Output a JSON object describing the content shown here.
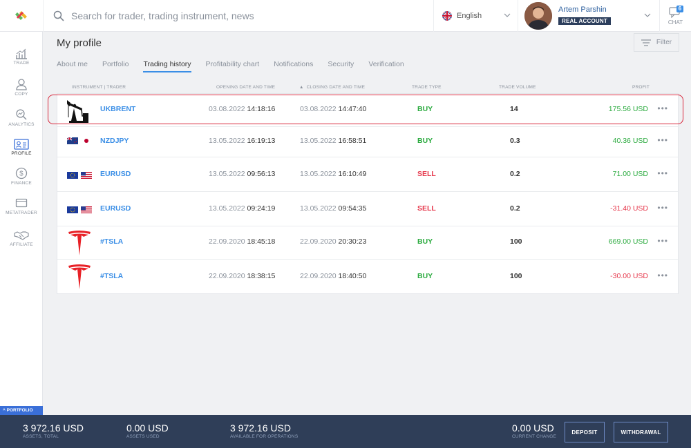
{
  "topbar": {
    "search_placeholder": "Search for trader, trading instrument, news",
    "language": "English",
    "account_name": "Artem Parshin",
    "account_type": "REAL ACCOUNT",
    "chat_label": "CHAT",
    "chat_count": "6"
  },
  "sidebar": {
    "items": [
      {
        "label": "TRADE",
        "icon": "chart-icon"
      },
      {
        "label": "COPY",
        "icon": "copy-icon"
      },
      {
        "label": "ANALYTICS",
        "icon": "analytics-icon"
      },
      {
        "label": "PROFILE",
        "icon": "profile-icon"
      },
      {
        "label": "FINANCE",
        "icon": "dollar-icon"
      },
      {
        "label": "METATRADER",
        "icon": "monitor-icon"
      },
      {
        "label": "AFFILIATE",
        "icon": "handshake-icon"
      }
    ],
    "portfolio_tab": "PORTFOLIO"
  },
  "main": {
    "title": "My profile",
    "filter_label": "Filter",
    "tabs": [
      {
        "label": "About me"
      },
      {
        "label": "Portfolio"
      },
      {
        "label": "Trading history"
      },
      {
        "label": "Profitability chart"
      },
      {
        "label": "Notifications"
      },
      {
        "label": "Security"
      },
      {
        "label": "Verification"
      }
    ],
    "active_tab": "Trading history",
    "columns": {
      "instrument": "INSTRUMENT | TRADER",
      "opening": "OPENING DATE AND TIME",
      "closing": "CLOSING DATE AND TIME",
      "type": "TRADE TYPE",
      "volume": "TRADE VOLUME",
      "profit": "PROFIT",
      "sort_indicator": "▲"
    },
    "rows": [
      {
        "symbol": "UKBRENT",
        "icon": "oil-pump-icon",
        "open_date": "03.08.2022",
        "open_time": "14:18:16",
        "close_date": "03.08.2022",
        "close_time": "14:47:40",
        "type": "BUY",
        "volume": "14",
        "profit": "175.56 USD"
      },
      {
        "symbol": "NZDJPY",
        "icon": "nz-jp-flags-icon",
        "open_date": "13.05.2022",
        "open_time": "16:19:13",
        "close_date": "13.05.2022",
        "close_time": "16:58:51",
        "type": "BUY",
        "volume": "0.3",
        "profit": "40.36 USD"
      },
      {
        "symbol": "EURUSD",
        "icon": "eu-us-flags-icon",
        "open_date": "13.05.2022",
        "open_time": "09:56:13",
        "close_date": "13.05.2022",
        "close_time": "16:10:49",
        "type": "SELL",
        "volume": "0.2",
        "profit": "71.00 USD"
      },
      {
        "symbol": "EURUSD",
        "icon": "eu-us-flags-icon",
        "open_date": "13.05.2022",
        "open_time": "09:24:19",
        "close_date": "13.05.2022",
        "close_time": "09:54:35",
        "type": "SELL",
        "volume": "0.2",
        "profit": "-31.40 USD"
      },
      {
        "symbol": "#TSLA",
        "icon": "tesla-logo-icon",
        "open_date": "22.09.2020",
        "open_time": "18:45:18",
        "close_date": "22.09.2020",
        "close_time": "20:30:23",
        "type": "BUY",
        "volume": "100",
        "profit": "669.00 USD"
      },
      {
        "symbol": "#TSLA",
        "icon": "tesla-logo-icon",
        "open_date": "22.09.2020",
        "open_time": "18:38:15",
        "close_date": "22.09.2020",
        "close_time": "18:40:50",
        "type": "BUY",
        "volume": "100",
        "profit": "-30.00 USD"
      }
    ],
    "more_glyph": "•••"
  },
  "bottombar": {
    "assets_total_value": "3 972.16 USD",
    "assets_total_label": "ASSETS, TOTAL",
    "assets_used_value": "0.00 USD",
    "assets_used_label": "ASSETS USED",
    "available_value": "3 972.16 USD",
    "available_label": "AVAILABLE FOR OPERATIONS",
    "change_value": "0.00 USD",
    "change_label": "CURRENT CHANGE",
    "deposit_label": "DEPOSIT",
    "withdrawal_label": "WITHDRAWAL"
  },
  "colors": {
    "accent": "#3a8ee6",
    "buy": "#2aaa3e",
    "sell": "#e6394d",
    "bottombar": "#2f3e58",
    "highlight": "#d8253a"
  }
}
